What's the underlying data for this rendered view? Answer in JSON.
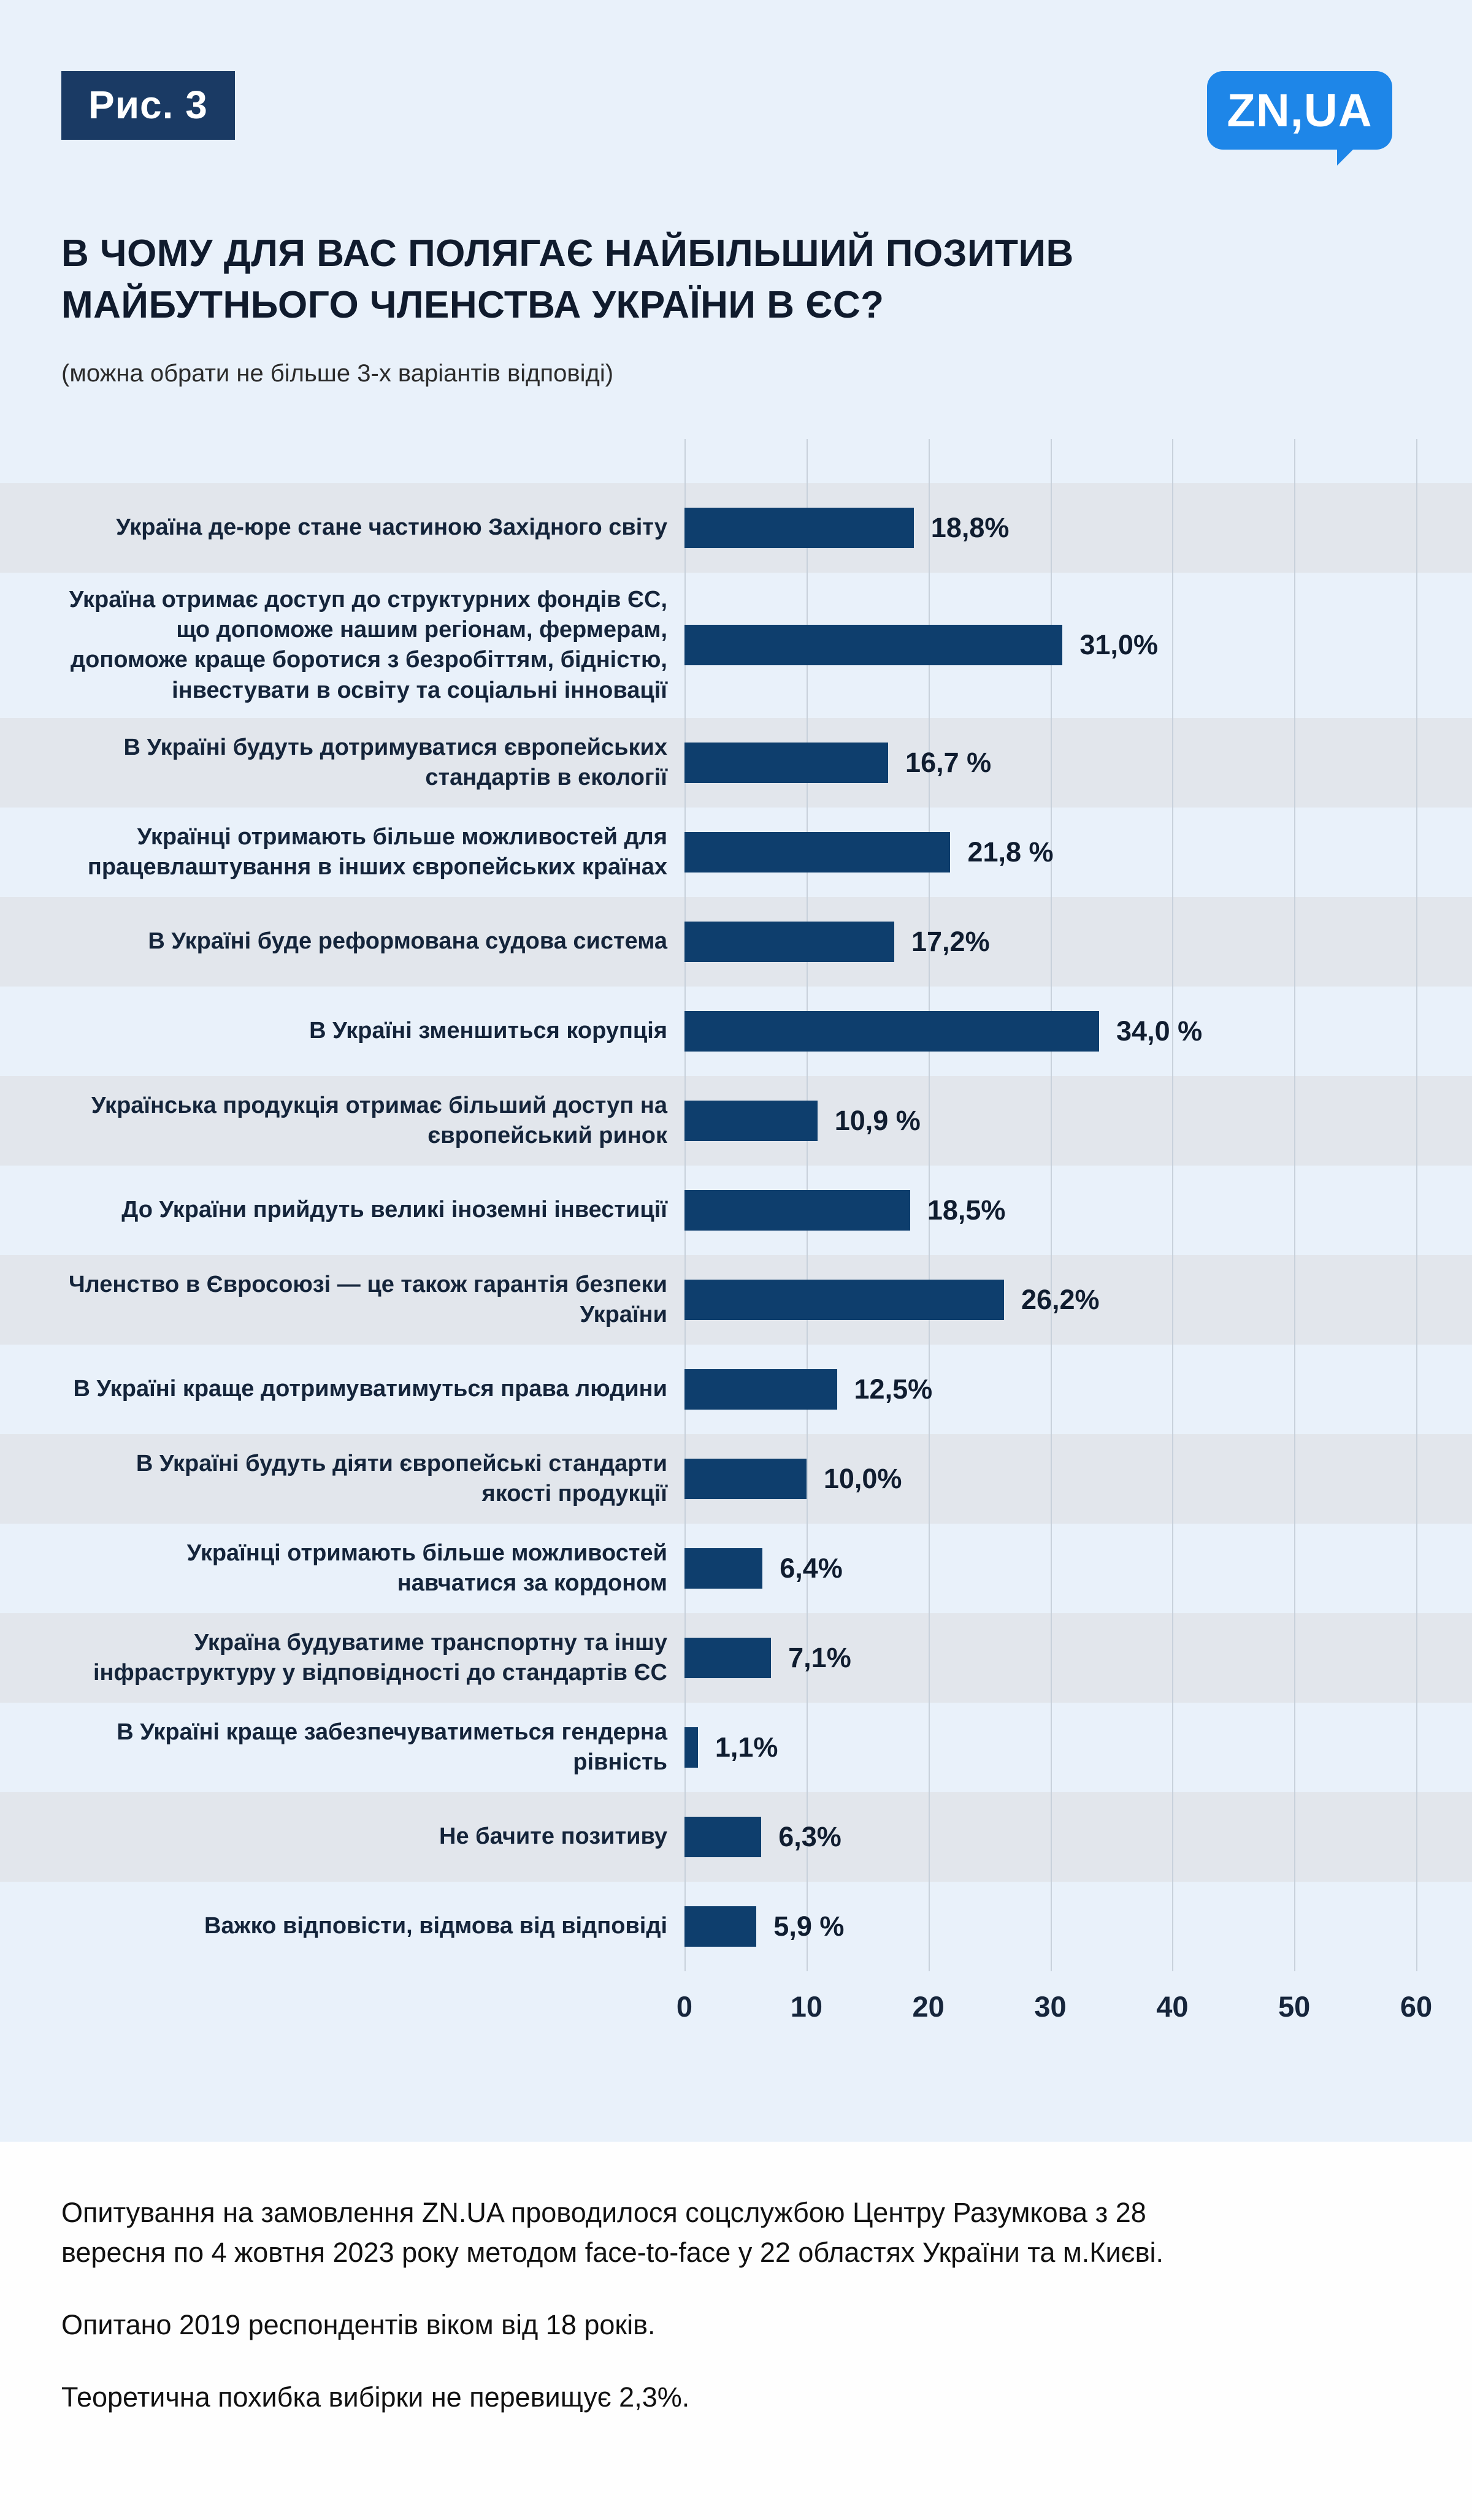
{
  "page": {
    "figure_label": "Рис. 3",
    "logo_text": "ZN,UA",
    "title": "В ЧОМУ ДЛЯ ВАС ПОЛЯГАЄ НАЙБІЛЬШИЙ ПОЗИТИВ МАЙБУТНЬОГО ЧЛЕНСТВА УКРАЇНИ В ЄС?",
    "subtitle": "(можна обрати не більше 3-х варіантів відповіді)"
  },
  "chart_data": {
    "type": "bar",
    "orientation": "horizontal",
    "categories": [
      "Україна де-юре стане частиною Західного світу",
      "Україна отримає доступ до структурних фондів ЄС, що допоможе нашим регіонам, фермерам, допоможе краще боротися з безробіттям, бідністю, інвестувати в освіту та соціальні інновації",
      "В Україні будуть дотримуватися європейських стандартів в екології",
      "Українці отримають більше можливостей для працевлаштування в інших європейських країнах",
      "В Україні буде реформована судова система",
      "В Україні зменшиться корупція",
      "Українська продукція отримає більший доступ на європейський ринок",
      "До України прийдуть великі іноземні інвестиції",
      "Членство в Євросоюзі — це також гарантія безпеки України",
      "В Україні краще дотримуватимуться права людини",
      "В Україні будуть діяти європейські стандарти якості продукції",
      "Українці отримають більше можливостей навчатися за кордоном",
      "Україна будуватиме транспортну та іншу інфраструктуру у відповідності до стандартів ЄС",
      "В Україні краще забезпечуватиметься гендерна рівність",
      "Не бачите позитиву",
      "Важко відповісти, відмова від відповіді"
    ],
    "values": [
      18.8,
      31.0,
      16.7,
      21.8,
      17.2,
      34.0,
      10.9,
      18.5,
      26.2,
      12.5,
      10.0,
      6.4,
      7.1,
      1.1,
      6.3,
      5.9
    ],
    "value_labels": [
      "18,8%",
      "31,0%",
      "16,7 %",
      "21,8 %",
      "17,2%",
      "34,0 %",
      "10,9 %",
      "18,5%",
      "26,2%",
      "12,5%",
      "10,0%",
      "6,4%",
      "7,1%",
      "1,1%",
      "6,3%",
      "5,9 %"
    ],
    "xlim": [
      0,
      60
    ],
    "x_ticks": [
      0,
      10,
      20,
      30,
      40,
      50,
      60
    ],
    "grid": true,
    "legend": false,
    "bar_color": "#0e3e6d"
  },
  "colors": {
    "page_background": "#e9f1fa",
    "row_stripe": "#e2e6ec",
    "bar": "#0e3e6d",
    "badge_background": "#1a3a64",
    "logo_blue": "#1e86e8",
    "title_text": "#101b2d",
    "gridline": "#c8d1db",
    "footer_background": "#fefefe"
  },
  "footer": {
    "paragraph1": "Опитування на замовлення ZN.UA проводилося соцслужбою Центру Разумкова з 28 вересня по 4 жовтня 2023 року методом face-to-face у 22 областях України та м.Києві.",
    "paragraph2": "Опитано 2019 респондентів віком від 18 років.",
    "paragraph3": "Теоретична похибка вибірки не перевищує 2,3%."
  }
}
